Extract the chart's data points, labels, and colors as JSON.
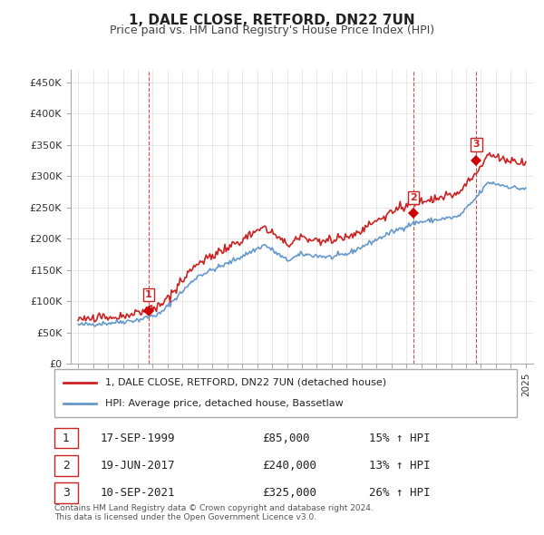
{
  "title": "1, DALE CLOSE, RETFORD, DN22 7UN",
  "subtitle": "Price paid vs. HM Land Registry's House Price Index (HPI)",
  "ylabel_ticks": [
    "£0",
    "£50K",
    "£100K",
    "£150K",
    "£200K",
    "£250K",
    "£300K",
    "£350K",
    "£400K",
    "£450K"
  ],
  "ytick_values": [
    0,
    50000,
    100000,
    150000,
    200000,
    250000,
    300000,
    350000,
    400000,
    450000
  ],
  "ylim": [
    0,
    470000
  ],
  "xlim_start": 1994.5,
  "xlim_end": 2025.5,
  "hpi_color": "#6699cc",
  "price_color": "#cc2222",
  "sale_marker_color": "#cc0000",
  "dashed_color": "#cc2222",
  "legend_label_red": "1, DALE CLOSE, RETFORD, DN22 7UN (detached house)",
  "legend_label_blue": "HPI: Average price, detached house, Bassetlaw",
  "sales": [
    {
      "num": 1,
      "date": "17-SEP-1999",
      "price": 85000,
      "year": 1999.72,
      "hpi_pct": "15%"
    },
    {
      "num": 2,
      "date": "19-JUN-2017",
      "price": 240000,
      "year": 2017.46,
      "hpi_pct": "13%"
    },
    {
      "num": 3,
      "date": "10-SEP-2021",
      "price": 325000,
      "year": 2021.7,
      "hpi_pct": "26%"
    }
  ],
  "table_rows": [
    {
      "num": 1,
      "date": "17-SEP-1999",
      "price": "£85,000",
      "hpi": "15% ↑ HPI"
    },
    {
      "num": 2,
      "date": "19-JUN-2017",
      "price": "£240,000",
      "hpi": "13% ↑ HPI"
    },
    {
      "num": 3,
      "date": "10-SEP-2021",
      "price": "£325,000",
      "hpi": "26% ↑ HPI"
    }
  ],
  "footnote": "Contains HM Land Registry data © Crown copyright and database right 2024.\nThis data is licensed under the Open Government Licence v3.0.",
  "background_color": "#ffffff",
  "grid_color": "#dddddd"
}
